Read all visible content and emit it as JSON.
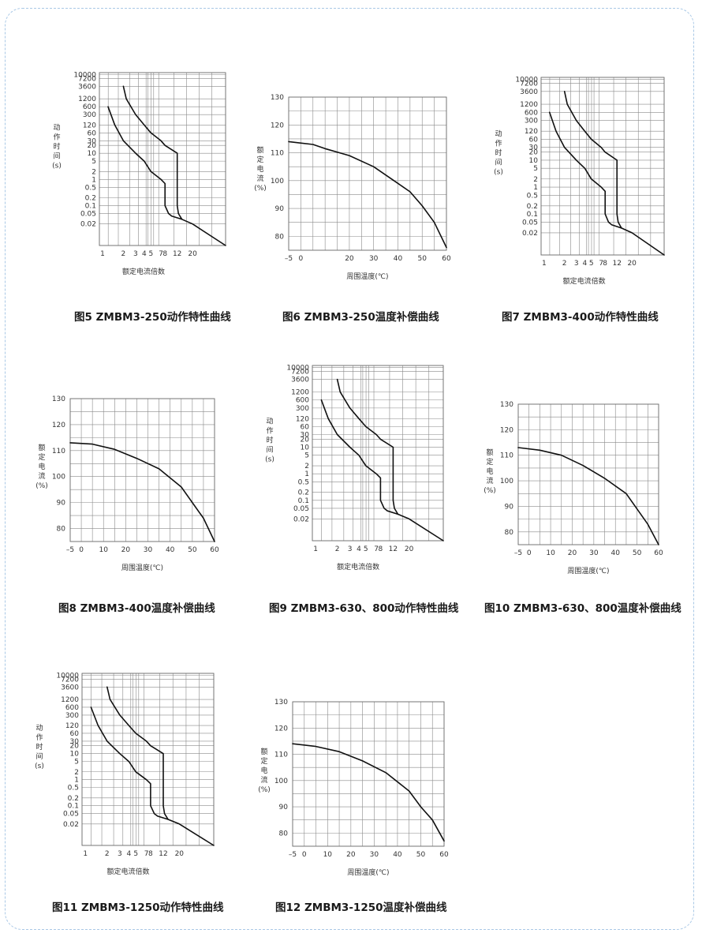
{
  "colors": {
    "frame": "#a9c8e6",
    "curve": "#111111",
    "grid": "#8a8a8a"
  },
  "chart_data": [
    {
      "id": "fig5",
      "type": "line",
      "kind": "trip",
      "title": "图5 ZMBM3-250动作特性曲线",
      "xlabel": "额定电流倍数",
      "ylabel": [
        "动",
        "作",
        "时",
        "间",
        "(s)"
      ],
      "xticks": [
        "1",
        "2",
        "3",
        "4",
        "5",
        "7",
        "8",
        "12",
        "20"
      ],
      "yticks": [
        "10000",
        "7200",
        "3600",
        "1200",
        "600",
        "300",
        "120",
        "60",
        "30",
        "20",
        "10",
        "5",
        "2",
        "1",
        "0.5",
        "0.2",
        "0.1",
        "0.05",
        "0.02"
      ],
      "series": [
        {
          "points": [
            [
              2.0,
              3600
            ],
            [
              2.2,
              1200
            ],
            [
              3,
              300
            ],
            [
              4,
              120
            ],
            [
              5,
              60
            ],
            [
              7,
              30
            ],
            [
              8,
              20
            ],
            [
              12,
              10
            ],
            [
              12,
              0.1
            ],
            [
              12.5,
              0.05
            ],
            [
              14,
              0.03
            ],
            [
              20,
              0.02
            ],
            [
              60,
              0.003
            ]
          ]
        },
        {
          "points": [
            [
              1.2,
              600
            ],
            [
              1.5,
              120
            ],
            [
              2,
              30
            ],
            [
              3,
              10
            ],
            [
              4,
              5
            ],
            [
              5,
              2
            ],
            [
              7,
              1
            ],
            [
              8,
              0.7
            ],
            [
              8,
              0.1
            ],
            [
              9,
              0.05
            ],
            [
              10,
              0.04
            ],
            [
              14,
              0.03
            ]
          ]
        }
      ]
    },
    {
      "id": "fig6",
      "type": "line",
      "kind": "temp",
      "title": "图6 ZMBM3-250温度补偿曲线",
      "xlabel": "周围温度(℃)",
      "ylabel": [
        "额",
        "定",
        "电",
        "流",
        "(%)"
      ],
      "xticks": [
        "-5",
        "0",
        "20",
        "30",
        "40",
        "50",
        "60"
      ],
      "yticks": [
        "130",
        "120",
        "110",
        "100",
        "90",
        "80"
      ],
      "series": [
        {
          "points": [
            [
              -5,
              114
            ],
            [
              5,
              113
            ],
            [
              10,
              111.5
            ],
            [
              20,
              109
            ],
            [
              30,
              105
            ],
            [
              40,
              99
            ],
            [
              45,
              96
            ],
            [
              50,
              91
            ],
            [
              55,
              85
            ],
            [
              60,
              76
            ]
          ]
        }
      ]
    },
    {
      "id": "fig7",
      "type": "line",
      "kind": "trip",
      "title": "图7 ZMBM3-400动作特性曲线",
      "xlabel": "额定电流倍数",
      "ylabel": [
        "动",
        "作",
        "时",
        "间",
        "(s)"
      ],
      "xticks": [
        "1",
        "2",
        "3",
        "4",
        "5",
        "7",
        "8",
        "12",
        "20"
      ],
      "yticks": [
        "10000",
        "7200",
        "3600",
        "1200",
        "600",
        "300",
        "120",
        "60",
        "30",
        "20",
        "10",
        "5",
        "2",
        "1",
        "0.5",
        "0.2",
        "0.1",
        "0.05",
        "0.02"
      ],
      "series": [
        {
          "points": [
            [
              2.0,
              3600
            ],
            [
              2.2,
              1200
            ],
            [
              3,
              300
            ],
            [
              4,
              120
            ],
            [
              5,
              60
            ],
            [
              7,
              30
            ],
            [
              8,
              20
            ],
            [
              12,
              10
            ],
            [
              12,
              0.1
            ],
            [
              12.5,
              0.05
            ],
            [
              14,
              0.03
            ],
            [
              20,
              0.02
            ],
            [
              60,
              0.003
            ]
          ]
        },
        {
          "points": [
            [
              1.2,
              600
            ],
            [
              1.5,
              120
            ],
            [
              2,
              30
            ],
            [
              3,
              10
            ],
            [
              4,
              5
            ],
            [
              5,
              2
            ],
            [
              7,
              1
            ],
            [
              8,
              0.7
            ],
            [
              8,
              0.1
            ],
            [
              9,
              0.05
            ],
            [
              10,
              0.04
            ],
            [
              14,
              0.03
            ]
          ]
        }
      ]
    },
    {
      "id": "fig8",
      "type": "line",
      "kind": "temp",
      "title": "图8 ZMBM3-400温度补偿曲线",
      "xlabel": "周围温度(℃)",
      "ylabel": [
        "额",
        "定",
        "电",
        "流",
        "(%)"
      ],
      "xticks": [
        "-5",
        "0",
        "10",
        "20",
        "30",
        "40",
        "50",
        "60"
      ],
      "yticks": [
        "130",
        "120",
        "110",
        "100",
        "90",
        "80"
      ],
      "series": [
        {
          "points": [
            [
              -5,
              113
            ],
            [
              5,
              112.5
            ],
            [
              15,
              110.5
            ],
            [
              25,
              107
            ],
            [
              35,
              103
            ],
            [
              45,
              96
            ],
            [
              50,
              90
            ],
            [
              55,
              84
            ],
            [
              60,
              75
            ]
          ]
        }
      ]
    },
    {
      "id": "fig9",
      "type": "line",
      "kind": "trip",
      "title": "图9 ZMBM3-630、800动作特性曲线",
      "xlabel": "额定电流倍数",
      "ylabel": [
        "动",
        "作",
        "时",
        "间",
        "(s)"
      ],
      "xticks": [
        "1",
        "2",
        "3",
        "4",
        "5",
        "7",
        "8",
        "12",
        "20"
      ],
      "yticks": [
        "10000",
        "7200",
        "3600",
        "1200",
        "600",
        "300",
        "120",
        "60",
        "30",
        "20",
        "10",
        "5",
        "2",
        "1",
        "0.5",
        "0.2",
        "0.1",
        "0.05",
        "0.02"
      ],
      "series": [
        {
          "points": [
            [
              2.0,
              3600
            ],
            [
              2.2,
              1200
            ],
            [
              3,
              300
            ],
            [
              4,
              120
            ],
            [
              5,
              60
            ],
            [
              7,
              30
            ],
            [
              8,
              20
            ],
            [
              12,
              10
            ],
            [
              12,
              0.1
            ],
            [
              12.5,
              0.05
            ],
            [
              14,
              0.03
            ],
            [
              20,
              0.02
            ],
            [
              60,
              0.003
            ]
          ]
        },
        {
          "points": [
            [
              1.2,
              600
            ],
            [
              1.5,
              120
            ],
            [
              2,
              30
            ],
            [
              3,
              10
            ],
            [
              4,
              5
            ],
            [
              5,
              2
            ],
            [
              7,
              1
            ],
            [
              8,
              0.7
            ],
            [
              8,
              0.1
            ],
            [
              9,
              0.05
            ],
            [
              10,
              0.04
            ],
            [
              14,
              0.03
            ]
          ]
        }
      ]
    },
    {
      "id": "fig10",
      "type": "line",
      "kind": "temp",
      "title": "图10 ZMBM3-630、800温度补偿曲线",
      "xlabel": "周围温度(℃)",
      "ylabel": [
        "额",
        "定",
        "电",
        "流",
        "(%)"
      ],
      "xticks": [
        "-5",
        "0",
        "10",
        "20",
        "30",
        "40",
        "50",
        "60"
      ],
      "yticks": [
        "130",
        "120",
        "110",
        "100",
        "90",
        "80"
      ],
      "series": [
        {
          "points": [
            [
              -5,
              113
            ],
            [
              5,
              112
            ],
            [
              15,
              110
            ],
            [
              25,
              106
            ],
            [
              35,
              101
            ],
            [
              45,
              95
            ],
            [
              50,
              89
            ],
            [
              55,
              83
            ],
            [
              60,
              75
            ]
          ]
        }
      ]
    },
    {
      "id": "fig11",
      "type": "line",
      "kind": "trip",
      "title": "图11 ZMBM3-1250动作特性曲线",
      "xlabel": "额定电流倍数",
      "ylabel": [
        "动",
        "作",
        "时",
        "间",
        "(s)"
      ],
      "xticks": [
        "1",
        "2",
        "3",
        "4",
        "5",
        "7",
        "8",
        "12",
        "20"
      ],
      "yticks": [
        "10000",
        "7200",
        "3600",
        "1200",
        "600",
        "300",
        "120",
        "60",
        "30",
        "20",
        "10",
        "5",
        "2",
        "1",
        "0.5",
        "0.2",
        "0.1",
        "0.05",
        "0.02"
      ],
      "series": [
        {
          "points": [
            [
              2.0,
              3600
            ],
            [
              2.2,
              1200
            ],
            [
              3,
              300
            ],
            [
              4,
              120
            ],
            [
              5,
              60
            ],
            [
              7,
              30
            ],
            [
              8,
              20
            ],
            [
              12,
              10
            ],
            [
              12,
              0.1
            ],
            [
              12.5,
              0.05
            ],
            [
              14,
              0.03
            ],
            [
              20,
              0.02
            ],
            [
              60,
              0.003
            ]
          ]
        },
        {
          "points": [
            [
              1.2,
              600
            ],
            [
              1.5,
              120
            ],
            [
              2,
              30
            ],
            [
              3,
              10
            ],
            [
              4,
              5
            ],
            [
              5,
              2
            ],
            [
              7,
              1
            ],
            [
              8,
              0.7
            ],
            [
              8,
              0.1
            ],
            [
              9,
              0.05
            ],
            [
              10,
              0.04
            ],
            [
              14,
              0.03
            ]
          ]
        }
      ]
    },
    {
      "id": "fig12",
      "type": "line",
      "kind": "temp",
      "title": "图12 ZMBM3-1250温度补偿曲线",
      "xlabel": "周围温度(℃)",
      "ylabel": [
        "额",
        "定",
        "电",
        "流",
        "(%)"
      ],
      "xticks": [
        "-5",
        "0",
        "10",
        "20",
        "30",
        "40",
        "50",
        "60"
      ],
      "yticks": [
        "130",
        "120",
        "110",
        "100",
        "90",
        "80"
      ],
      "series": [
        {
          "points": [
            [
              -5,
              114
            ],
            [
              5,
              113
            ],
            [
              15,
              111
            ],
            [
              25,
              107.5
            ],
            [
              35,
              103
            ],
            [
              45,
              96
            ],
            [
              50,
              90
            ],
            [
              55,
              85
            ],
            [
              60,
              77
            ]
          ]
        }
      ]
    }
  ]
}
